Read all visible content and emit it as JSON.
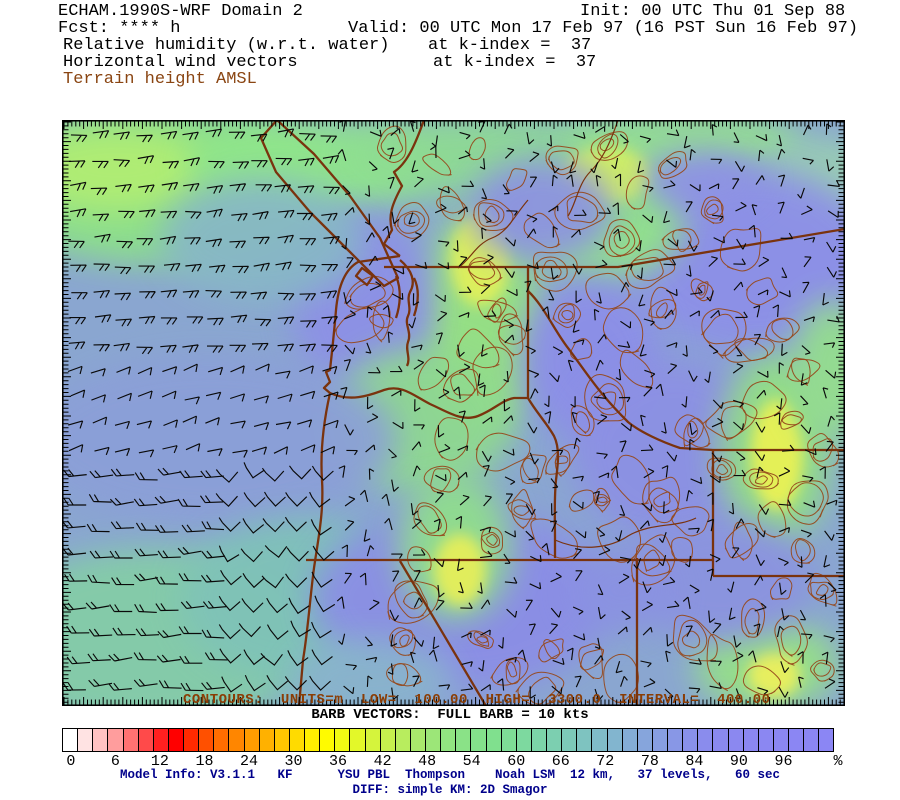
{
  "header": {
    "model_title": "ECHAM.1990S-WRF Domain 2",
    "fcst": "Fcst: **** h",
    "field_rh": "Relative humidity (w.r.t. water)",
    "field_wind": "Horizontal wind vectors",
    "field_terrain": "Terrain height AMSL",
    "init": "Init: 00 UTC Thu 01 Sep 88",
    "valid": "Valid: 00 UTC Mon 17 Feb 97 (16 PST Sun 16 Feb 97)",
    "level_rh": "at k-index =  37",
    "level_wind": "at k-index =  37",
    "terrain_color": "#8a4512"
  },
  "map": {
    "contours_label": "CONTOURS:  UNITS=m  LOW=  100.00  HIGH=  3300.0  INTERVAL=  400.00",
    "barb_note": "BARB VECTORS:  FULL BARB = 10 kts",
    "border_color": "#7a330e",
    "terrain_contour_color": "#96491c",
    "barb_color": "#0a0a0a"
  },
  "footer": {
    "line1": "Model Info: V3.1.1   KF      YSU PBL  Thompson    Noah LSM  12 km,   37 levels,   60 sec",
    "line2": "DIFF: simple KM: 2D Smagor",
    "color": "#00008b"
  },
  "chart_data": {
    "type": "heatmap",
    "title": "Relative humidity (w.r.t. water)",
    "overlays": [
      "Horizontal wind vectors",
      "Terrain height AMSL"
    ],
    "terrain_contours": {
      "units": "m",
      "low": 100.0,
      "high": 3300.0,
      "interval": 400.0
    },
    "wind_barbs": {
      "full_barb_kts": 10
    },
    "colorbar": {
      "unit": "%",
      "range": [
        -2,
        100
      ],
      "cell_interval": 2,
      "tick_labels": [
        0,
        6,
        12,
        18,
        24,
        30,
        36,
        42,
        48,
        54,
        60,
        66,
        72,
        78,
        84,
        90,
        96
      ],
      "stops": [
        [
          -2,
          "#ffffff"
        ],
        [
          0,
          "#ffe3e3"
        ],
        [
          2,
          "#ffc2c2"
        ],
        [
          4,
          "#ff9d9d"
        ],
        [
          6,
          "#ff7272"
        ],
        [
          8,
          "#ff4a4a"
        ],
        [
          10,
          "#ff2020"
        ],
        [
          12,
          "#ff0000"
        ],
        [
          14,
          "#ff2a00"
        ],
        [
          16,
          "#ff5000"
        ],
        [
          18,
          "#ff6d00"
        ],
        [
          20,
          "#ff8600"
        ],
        [
          22,
          "#ff9c00"
        ],
        [
          24,
          "#ffb100"
        ],
        [
          26,
          "#ffc600"
        ],
        [
          28,
          "#ffdb00"
        ],
        [
          30,
          "#ffef00"
        ],
        [
          32,
          "#fffb00"
        ],
        [
          34,
          "#f1fb13"
        ],
        [
          36,
          "#e3f829"
        ],
        [
          38,
          "#d5f43c"
        ],
        [
          40,
          "#c6f04e"
        ],
        [
          42,
          "#b8ed5e"
        ],
        [
          44,
          "#a9e96c"
        ],
        [
          46,
          "#9ce678"
        ],
        [
          48,
          "#92e481"
        ],
        [
          50,
          "#8ae287"
        ],
        [
          52,
          "#84e18b"
        ],
        [
          54,
          "#80e08e"
        ],
        [
          56,
          "#7edd96"
        ],
        [
          58,
          "#7dd99f"
        ],
        [
          60,
          "#7cd4a8"
        ],
        [
          62,
          "#7ccfb0"
        ],
        [
          64,
          "#7dc9b8"
        ],
        [
          66,
          "#7ec3c0"
        ],
        [
          68,
          "#80bcc8"
        ],
        [
          70,
          "#82b5cf"
        ],
        [
          72,
          "#84add6"
        ],
        [
          74,
          "#86a5dc"
        ],
        [
          76,
          "#879ee2"
        ],
        [
          78,
          "#8897e6"
        ],
        [
          80,
          "#8991ea"
        ],
        [
          82,
          "#8a8ced"
        ],
        [
          84,
          "#8a89ef"
        ],
        [
          86,
          "#8b88f0"
        ],
        [
          88,
          "#8b87f1"
        ],
        [
          90,
          "#8b87f2"
        ],
        [
          92,
          "#8b87f2"
        ],
        [
          94,
          "#8b86f3"
        ],
        [
          96,
          "#8b86f3"
        ],
        [
          98,
          "#8b86f4"
        ]
      ]
    }
  }
}
